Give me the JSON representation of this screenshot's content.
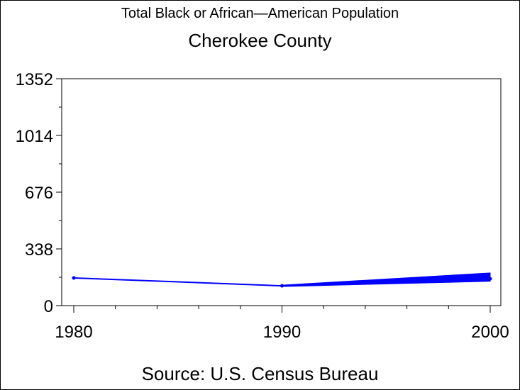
{
  "chart_data": {
    "type": "line",
    "title": "Total Black or African—American Population",
    "subtitle": "Cherokee County",
    "footnote": "Source: U.S. Census Bureau",
    "x": [
      1980,
      1990,
      2000
    ],
    "x_tick_labels": [
      "1980",
      "1990",
      "2000"
    ],
    "y_ticks": [
      0,
      338,
      676,
      1014,
      1352
    ],
    "y_tick_labels": [
      "0",
      "338",
      "676",
      "1014",
      "1352"
    ],
    "ylim": [
      0,
      1352
    ],
    "xlim": [
      1980,
      2000
    ],
    "series": [
      {
        "values": [
          165,
          118,
          160
        ],
        "range_2000": [
          145,
          195
        ]
      }
    ],
    "colors": {
      "line": "#0000ff"
    },
    "grid": false
  }
}
